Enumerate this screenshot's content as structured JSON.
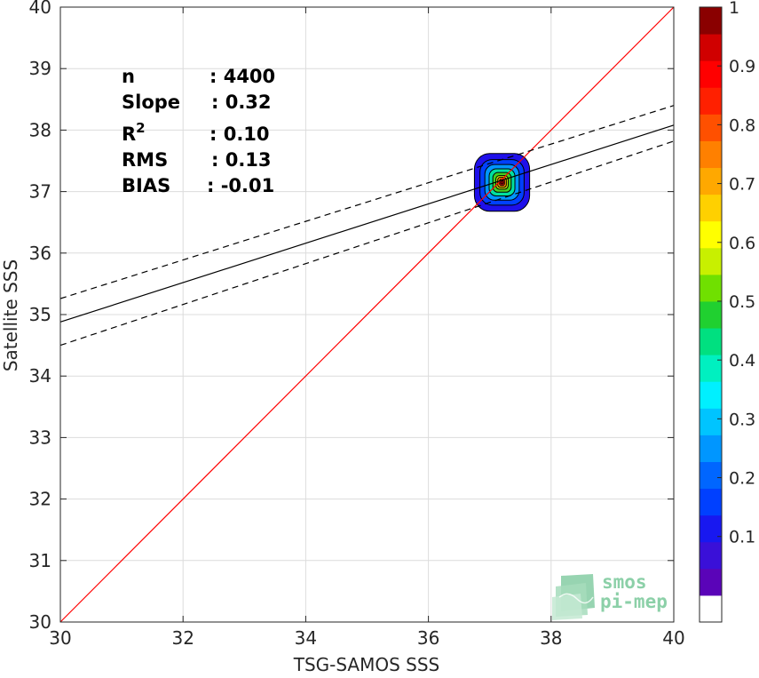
{
  "chart_data": {
    "type": "heatmap",
    "xlabel": "TSG-SAMOS SSS",
    "ylabel": "Satellite SSS",
    "xlim": [
      30,
      40
    ],
    "ylim": [
      30,
      40
    ],
    "x_ticks": [
      "30",
      "32",
      "34",
      "36",
      "38",
      "40"
    ],
    "y_ticks": [
      "30",
      "31",
      "32",
      "33",
      "34",
      "35",
      "36",
      "37",
      "38",
      "39",
      "40"
    ],
    "grid": true,
    "lines": [
      {
        "kind": "identity",
        "color": "#ff0000",
        "style": "solid",
        "points": [
          [
            30,
            30
          ],
          [
            40,
            40
          ]
        ]
      },
      {
        "kind": "regression",
        "color": "#000000",
        "style": "solid",
        "points": [
          [
            30,
            34.88
          ],
          [
            40,
            38.08
          ]
        ]
      },
      {
        "kind": "regression-upper",
        "color": "#000000",
        "style": "dashed",
        "points": [
          [
            30,
            35.26
          ],
          [
            40,
            38.4
          ]
        ]
      },
      {
        "kind": "regression-lower",
        "color": "#000000",
        "style": "dashed",
        "points": [
          [
            30,
            34.5
          ],
          [
            40,
            37.82
          ]
        ]
      }
    ],
    "density": {
      "center": [
        37.2,
        37.15
      ],
      "levels": [
        {
          "level": 0.05,
          "rx": 0.45,
          "ry": 0.47,
          "color": "#1f10ea"
        },
        {
          "level": 0.15,
          "rx": 0.36,
          "ry": 0.37,
          "color": "#0040ff"
        },
        {
          "level": 0.3,
          "rx": 0.28,
          "ry": 0.29,
          "color": "#0096ff"
        },
        {
          "level": 0.45,
          "rx": 0.21,
          "ry": 0.22,
          "color": "#00e0a0"
        },
        {
          "level": 0.55,
          "rx": 0.15,
          "ry": 0.16,
          "color": "#40d020"
        },
        {
          "level": 0.65,
          "rx": 0.1,
          "ry": 0.11,
          "color": "#c8e600"
        },
        {
          "level": 0.75,
          "rx": 0.07,
          "ry": 0.08,
          "color": "#ff9000"
        },
        {
          "level": 0.9,
          "rx": 0.04,
          "ry": 0.05,
          "color": "#ff1010"
        },
        {
          "level": 1.0,
          "rx": 0.02,
          "ry": 0.025,
          "color": "#b00000"
        }
      ]
    },
    "stats": [
      {
        "label": "n",
        "value": ": 4400"
      },
      {
        "label": "Slope",
        "value": ": 0.32"
      },
      {
        "label": "R",
        "sup": "2",
        "value": ": 0.10"
      },
      {
        "label": "RMS",
        "value": ": 0.13"
      },
      {
        "label": "BIAS",
        "value": ": -0.01"
      }
    ],
    "colorbar": {
      "range": [
        0,
        1
      ],
      "tick_labels": [
        "0.1",
        "0.2",
        "0.3",
        "0.4",
        "0.5",
        "0.6",
        "0.7",
        "0.8",
        "0.9",
        "1"
      ],
      "colors": [
        "#ffffff",
        "#5a04b8",
        "#3a10d8",
        "#1818f0",
        "#0040ff",
        "#0066ff",
        "#0096ff",
        "#00c4ff",
        "#00f0ff",
        "#00f0c0",
        "#00e080",
        "#20d030",
        "#70e000",
        "#c8f000",
        "#ffff00",
        "#ffd000",
        "#ffa800",
        "#ff8000",
        "#ff5000",
        "#ff2000",
        "#ff0000",
        "#d00000",
        "#8a0000"
      ]
    },
    "logo": {
      "line1": "smos",
      "line2": "pi-mep"
    }
  }
}
